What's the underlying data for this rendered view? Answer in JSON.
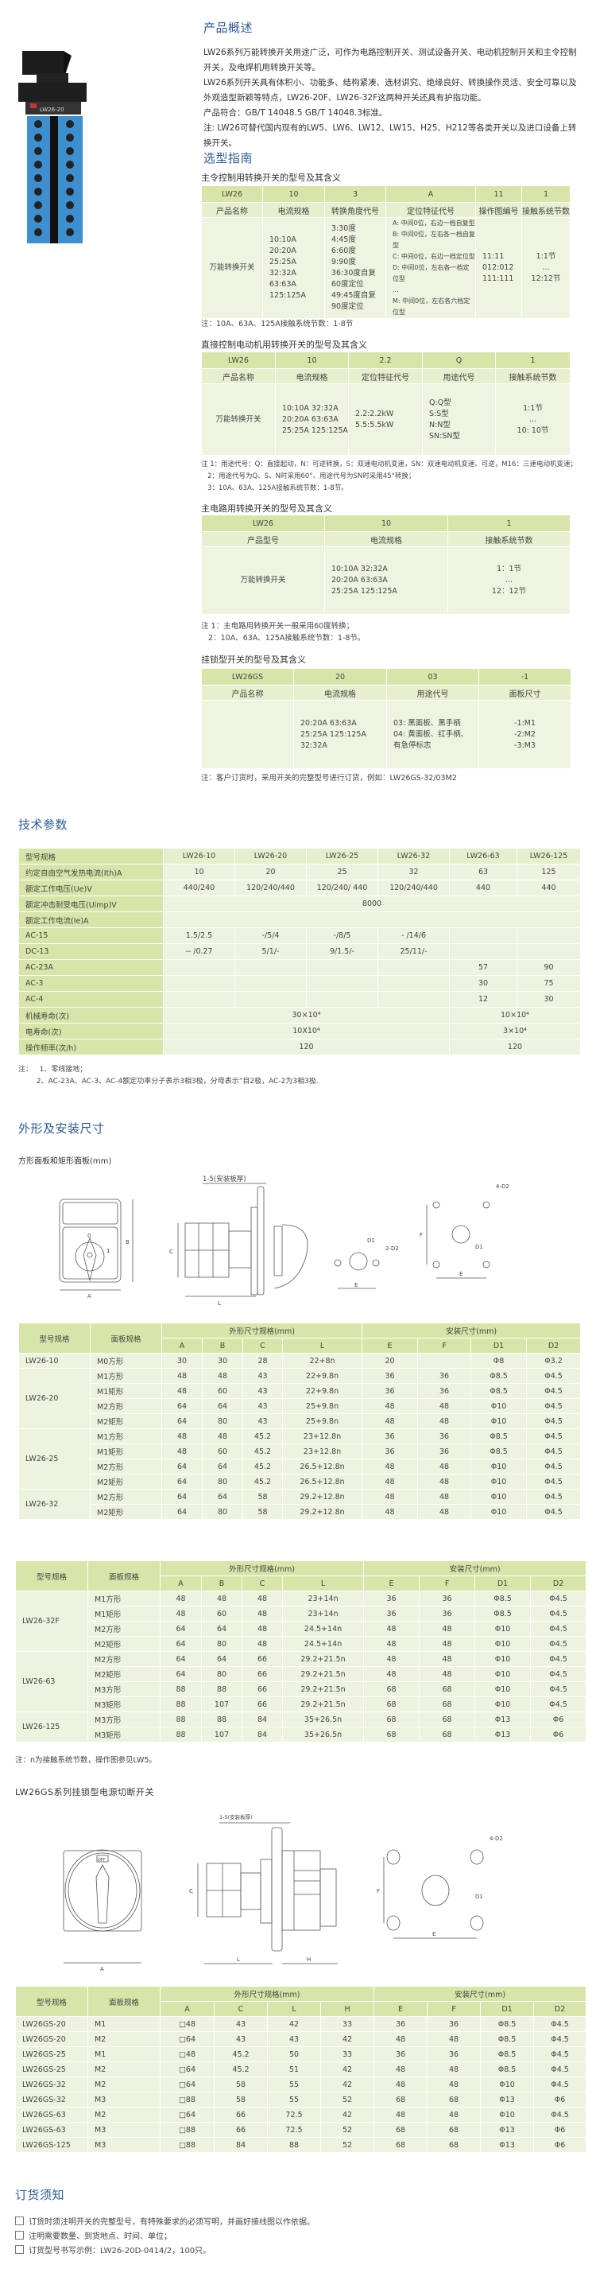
{
  "product": {
    "label": "LW26-20"
  },
  "overview": {
    "title": "产品概述",
    "paragraphs": [
      "LW26系列万能转换开关用途广泛，可作为电路控制开关、测试设备开关、电动机控制开关和主令控制开关，及电焊机用转换开关等。",
      "LW26系列开关具有体积小、功能多、结构紧凑、选材讲究、绝缘良好、转换操作灵活、安全可靠以及外观造型新颖等特点，LW26-20F、LW26-32F这两种开关还具有护指功能。",
      "产品符合：GB/T 14048.5  GB/T 14048.3标准。",
      "注: LW26可替代国内现有的LW5、LW6、LW12、LW15、H25、H212等各类开关以及进口设备上转换开关。"
    ]
  },
  "selection": {
    "title": "选型指南",
    "tables": [
      {
        "title": "主令控制用转换开关的型号及其含义",
        "codes": [
          "LW26",
          "10",
          "3",
          "A",
          "11",
          "1"
        ],
        "labels": [
          "产品名称",
          "电流规格",
          "转换角度代号",
          "定位特征代号",
          "操作图编号",
          "接触系统节数"
        ],
        "body": [
          "万能转换开关",
          "10:10A\n20:20A\n25:25A\n32:32A\n63:63A\n125:125A",
          "3:30度\n4:45度\n6:60度\n9:90度\n36:30度自复\n60度定位\n49:45度自复\n90度定位",
          "A: 中间0位，右边一档自复型\nB: 中间0位，左右各一档自复型\nC: 中间0位，右边一档定位型\nD: 中间0位，左右各一档定位型\n…\nM: 中间0位，左右各六档定位型",
          "11:11\n012:012\n111:111",
          "1:1节\n…\n12:12节"
        ],
        "notes": [
          "注：10A、63A、125A接触系统节数：1-8节"
        ]
      },
      {
        "title": "直接控制电动机用转换开关的型号及其含义",
        "codes": [
          "LW26",
          "10",
          "2.2",
          "Q",
          "1"
        ],
        "labels": [
          "产品名称",
          "电流规格",
          "定位特征代号",
          "用途代号",
          "接触系统节数"
        ],
        "body": [
          "万能转换开关",
          "10:10A 32:32A\n20:20A 63:63A\n25:25A 125:125A",
          "2.2:2.2kW\n5.5:5.5kW",
          "Q:Q型\nS:S型\nN:N型\nSN:SN型",
          "1:1节\n…\n10: 10节"
        ],
        "notes": [
          "注 1：用途代号：Q：直接起动，N：可逆转换，S：双速电动机变速，SN：双速电动机变速、可逆，M16：三速电动机变速；",
          "   2：用途代号为Q、S、N时采用60°、用途代号为SN时采用45°转换；",
          "   3：10A、63A、125A接触系统节数：1-8节。"
        ]
      },
      {
        "title": "主电路用转换开关的型号及其含义",
        "codes": [
          "LW26",
          "10",
          "1"
        ],
        "labels": [
          "产品型号",
          "电流规格",
          "接触系统节数"
        ],
        "body": [
          "万能转换开关",
          "10:10A    32:32A\n20:20A    63:63A\n25:25A    125:125A",
          "1：1节\n…\n12：12节"
        ],
        "notes": [
          "注 1：主电路用转换开关一般采用60度转换；",
          "   2：10A、63A、125A接触系统节数：1-8节。"
        ]
      },
      {
        "title": "挂锁型开关的型号及其含义",
        "codes": [
          "LW26GS",
          "20",
          "03",
          "-1"
        ],
        "labels": [
          "产品名称",
          "电流规格",
          "用途代号",
          "面板尺寸"
        ],
        "body": [
          "",
          "20:20A   63:63A\n25:25A   125:125A\n32:32A",
          "03: 黑面板、黑手柄\n04: 黄面板、红手柄、\n有急停标志",
          "-1:M1\n-2:M2\n-3:M3"
        ],
        "notes": [
          "注：客户订货时，采用开关的完整型号进行订货，例如：LW26GS-32/03M2"
        ]
      }
    ]
  },
  "tech": {
    "title": "技术参数",
    "header": [
      "型号规格",
      "LW26-10",
      "LW26-20",
      "LW26-25",
      "LW26-32",
      "LW26-63",
      "LW26-125"
    ],
    "rows": [
      [
        "约定自由空气发热电流(Ith)A",
        "10",
        "20",
        "25",
        "32",
        "63",
        "125"
      ],
      [
        "额定工作电压(Ue)V",
        "440/240",
        "120/240/440",
        "120/240/ 440",
        "120/240/440",
        "440",
        "440"
      ],
      [
        "额定冲击耐受电压(Uimp)V",
        {
          "t": "8000",
          "cs": 6
        }
      ],
      [
        "额定工作电流(Ie)A",
        {
          "t": "",
          "cs": 6
        }
      ],
      [
        "AC-15",
        "1.5/2.5",
        "-/5/4",
        "-/8/5",
        "- /14/6",
        "",
        ""
      ],
      [
        "DC-13",
        "-- /0.27",
        "5/1/-",
        "9/1.5/-",
        "25/11/-",
        "",
        ""
      ],
      [
        "AC-23A",
        "",
        "",
        "",
        "",
        "57",
        "90"
      ],
      [
        "AC-3",
        "",
        "",
        "",
        "",
        "30",
        "75"
      ],
      [
        "AC-4",
        "",
        "",
        "",
        "",
        "12",
        "30"
      ],
      [
        "机械寿命(次)",
        {
          "t": "30×10⁴",
          "cs": 4
        },
        {
          "t": "10×10⁴",
          "cs": 2
        }
      ],
      [
        "电寿命(次)",
        {
          "t": "10X10⁴",
          "cs": 4
        },
        {
          "t": "3×10⁴",
          "cs": 2
        }
      ],
      [
        "操作频率(次/h)",
        {
          "t": "120",
          "cs": 4
        },
        {
          "t": "120",
          "cs": 2
        }
      ]
    ],
    "notes": [
      "注：   1、零线接地；",
      "        2、AC-23A、AC-3、AC-4额定功率分子表示3相3极，分母表示”目2极，AC-2为3相3极."
    ]
  },
  "dimensions": {
    "title": "外形及安装尺寸",
    "subtitle": "方形面板和矩形面板(mm)",
    "drawing": {
      "thickness": "1-5(安装板厚)",
      "A": "A",
      "B": "B",
      "C": "C",
      "L": "L",
      "E": "E",
      "F": "F",
      "D1": "D1",
      "D2_2": "2-D2",
      "D2_4": "4-D2",
      "pos0": "0",
      "pos1": "1"
    },
    "header": {
      "model": "型号规格",
      "panel": "面板规格",
      "outer": "外形尺寸规格(mm)",
      "mount": "安装尺寸(mm)",
      "cols": [
        "A",
        "B",
        "C",
        "L",
        "E",
        "F",
        "D1",
        "D2"
      ]
    },
    "table1": [
      {
        "model": "LW26-10",
        "rows": [
          [
            "M0方形",
            "30",
            "30",
            "28",
            "22+8n",
            "20",
            "",
            "Φ8",
            "Φ3.2"
          ]
        ]
      },
      {
        "model": "LW26-20",
        "rows": [
          [
            "M1方形",
            "48",
            "48",
            "43",
            "22+9.8n",
            "36",
            "36",
            "Φ8.5",
            "Φ4.5"
          ],
          [
            "M1矩形",
            "48",
            "60",
            "43",
            "22+9.8n",
            "36",
            "36",
            "Φ8.5",
            "Φ4.5"
          ],
          [
            "M2方形",
            "64",
            "64",
            "43",
            "25+9.8n",
            "48",
            "48",
            "Φ10",
            "Φ4.5"
          ],
          [
            "M2矩形",
            "64",
            "80",
            "43",
            "25+9.8n",
            "48",
            "48",
            "Φ10",
            "Φ4.5"
          ]
        ]
      },
      {
        "model": "LW26-25",
        "rows": [
          [
            "M1方形",
            "48",
            "48",
            "45.2",
            "23+12.8n",
            "36",
            "36",
            "Φ8.5",
            "Φ4.5"
          ],
          [
            "M1矩形",
            "48",
            "60",
            "45.2",
            "23+12.8n",
            "36",
            "36",
            "Φ8.5",
            "Φ4.5"
          ],
          [
            "M2方形",
            "64",
            "64",
            "45.2",
            "26.5+12.8n",
            "48",
            "48",
            "Φ10",
            "Φ4.5"
          ],
          [
            "M2矩形",
            "64",
            "80",
            "45.2",
            "26.5+12.8n",
            "48",
            "48",
            "Φ10",
            "Φ4.5"
          ]
        ]
      },
      {
        "model": "LW26-32",
        "rows": [
          [
            "M2方形",
            "64",
            "64",
            "58",
            "29.2+12.8n",
            "48",
            "48",
            "Φ10",
            "Φ4.5"
          ],
          [
            "M2矩形",
            "64",
            "80",
            "58",
            "29.2+12.8n",
            "48",
            "48",
            "Φ10",
            "Φ4.5"
          ]
        ]
      }
    ],
    "table2": [
      {
        "model": "LW26-32F",
        "rows": [
          [
            "M1方形",
            "48",
            "48",
            "48",
            "23+14n",
            "36",
            "36",
            "Φ8.5",
            "Φ4.5"
          ],
          [
            "M1矩形",
            "48",
            "60",
            "48",
            "23+14n",
            "36",
            "36",
            "Φ8.5",
            "Φ4.5"
          ],
          [
            "M2方形",
            "64",
            "64",
            "48",
            "24.5+14n",
            "48",
            "48",
            "Φ10",
            "Φ4.5"
          ],
          [
            "M2矩形",
            "64",
            "80",
            "48",
            "24.5+14n",
            "48",
            "48",
            "Φ10",
            "Φ4.5"
          ]
        ]
      },
      {
        "model": "LW26-63",
        "rows": [
          [
            "M2方形",
            "64",
            "64",
            "66",
            "29.2+21.5n",
            "48",
            "48",
            "Φ10",
            "Φ4.5"
          ],
          [
            "M2矩形",
            "64",
            "80",
            "66",
            "29.2+21.5n",
            "48",
            "48",
            "Φ10",
            "Φ4.5"
          ],
          [
            "M3方形",
            "88",
            "88",
            "66",
            "29.2+21.5n",
            "68",
            "68",
            "Φ10",
            "Φ4.5"
          ],
          [
            "M3矩形",
            "88",
            "107",
            "66",
            "29.2+21.5n",
            "68",
            "68",
            "Φ10",
            "Φ4.5"
          ]
        ]
      },
      {
        "model": "LW26-125",
        "rows": [
          [
            "M3方形",
            "88",
            "88",
            "84",
            "35+26.5n",
            "68",
            "68",
            "Φ13",
            "Φ6"
          ],
          [
            "M3矩形",
            "88",
            "107",
            "84",
            "35+26.5n",
            "68",
            "68",
            "Φ13",
            "Φ6"
          ]
        ]
      }
    ],
    "note": "注：n为接触系统节数，操作图参见LW5。"
  },
  "gs": {
    "title": "LW26GS系列挂锁型电源切断开关",
    "drawing": {
      "thickness": "1-5(安装板厚)",
      "A": "A",
      "C": "C",
      "L": "L",
      "H": "H",
      "E": "E",
      "F": "F",
      "D1": "D1",
      "D2_4": "4-D2",
      "off": "OFF"
    },
    "header": {
      "model": "型号规格",
      "panel": "面板规格",
      "outer": "外形尺寸规格(mm)",
      "mount": "安装尺寸(mm)",
      "cols": [
        "A",
        "C",
        "L",
        "H",
        "E",
        "F",
        "D1",
        "D2"
      ]
    },
    "rows": [
      [
        "LW26GS-20",
        "M1",
        "□48",
        "43",
        "42",
        "33",
        "36",
        "36",
        "Φ8.5",
        "Φ4.5"
      ],
      [
        "LW26GS-20",
        "M2",
        "□64",
        "43",
        "43",
        "42",
        "48",
        "48",
        "Φ8.5",
        "Φ4.5"
      ],
      [
        "LW26GS-25",
        "M1",
        "□48",
        "45.2",
        "50",
        "33",
        "36",
        "36",
        "Φ8.5",
        "Φ4.5"
      ],
      [
        "LW26GS-25",
        "M2",
        "□64",
        "45.2",
        "51",
        "42",
        "48",
        "48",
        "Φ8.5",
        "Φ4.5"
      ],
      [
        "LW26GS-32",
        "M2",
        "□64",
        "58",
        "55",
        "42",
        "48",
        "48",
        "Φ10",
        "Φ4.5"
      ],
      [
        "LW26GS-32",
        "M3",
        "□88",
        "58",
        "55",
        "52",
        "68",
        "68",
        "Φ13",
        "Φ6"
      ],
      [
        "LW26GS-63",
        "M2",
        "□64",
        "66",
        "72.5",
        "42",
        "48",
        "48",
        "Φ10",
        "Φ4.5"
      ],
      [
        "LW26GS-63",
        "M3",
        "□88",
        "66",
        "72.5",
        "52",
        "68",
        "68",
        "Φ13",
        "Φ6"
      ],
      [
        "LW26GS-125",
        "M3",
        "□88",
        "84",
        "88",
        "52",
        "68",
        "68",
        "Φ13",
        "Φ6"
      ]
    ]
  },
  "order": {
    "title": "订货须知",
    "items": [
      "订货时须注明开关的完整型号，有特殊要求的必须写明，并画好接线图以作依据。",
      "注明需要数量、到货地点、时间、单位；",
      "订货型号书写示例：LW26-20D-0414/2，100只。"
    ]
  },
  "colors": {
    "heading": "#2b5c98",
    "header_green": "#d8e5a9",
    "row_green": "#e7efcf",
    "body_green": "#eef4e0",
    "switch_blue": "#3d8fd0"
  }
}
